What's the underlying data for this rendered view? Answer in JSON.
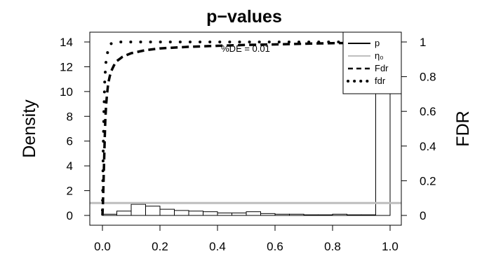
{
  "chart_data": {
    "type": "bar",
    "title": "p−values",
    "annotation": "%DE = 0.01",
    "xlabel": "",
    "ylabel": "Density",
    "y2label": "FDR",
    "xlim": [
      0,
      1
    ],
    "ylim": [
      0,
      14
    ],
    "y2lim": [
      0,
      1
    ],
    "x_ticks": [
      "0.0",
      "0.2",
      "0.4",
      "0.6",
      "0.8",
      "1.0"
    ],
    "y_ticks": [
      "0",
      "2",
      "4",
      "6",
      "8",
      "10",
      "12",
      "14"
    ],
    "y2_ticks": [
      "0",
      "0.2",
      "0.4",
      "0.6",
      "0.8",
      "1"
    ],
    "legend": {
      "position": "top-right",
      "entries": [
        {
          "label": "p",
          "style": "solid",
          "color": "#000000"
        },
        {
          "label": "η₀",
          "style": "solid",
          "color": "#bebebe"
        },
        {
          "label": "Fdr",
          "style": "dashed",
          "color": "#000000"
        },
        {
          "label": "fdr",
          "style": "dotted",
          "color": "#000000"
        }
      ]
    },
    "histogram": {
      "name": "p",
      "breaks": [
        0,
        0.05,
        0.1,
        0.15,
        0.2,
        0.25,
        0.3,
        0.35,
        0.4,
        0.45,
        0.5,
        0.55,
        0.6,
        0.65,
        0.7,
        0.75,
        0.8,
        0.85,
        0.9,
        0.95,
        1.0
      ],
      "density": [
        0.1,
        0.35,
        0.9,
        0.75,
        0.5,
        0.4,
        0.35,
        0.3,
        0.2,
        0.2,
        0.3,
        0.15,
        0.1,
        0.1,
        0.05,
        0.05,
        0.1,
        0.05,
        0.05,
        14.5
      ]
    },
    "eta0": {
      "name": "η₀",
      "density": 1.0
    },
    "series": [
      {
        "name": "Fdr",
        "axis": "FDR",
        "x": [
          0.0,
          0.002,
          0.004,
          0.006,
          0.008,
          0.01,
          0.013,
          0.016,
          0.02,
          0.025,
          0.03,
          0.04,
          0.05,
          0.07,
          0.1,
          0.15,
          0.2,
          0.3,
          0.4,
          0.5,
          0.6,
          0.7,
          0.8,
          0.9,
          1.0
        ],
        "y": [
          0.0,
          0.08,
          0.2,
          0.33,
          0.45,
          0.55,
          0.64,
          0.7,
          0.76,
          0.8,
          0.83,
          0.865,
          0.89,
          0.915,
          0.935,
          0.953,
          0.963,
          0.972,
          0.978,
          0.983,
          0.986,
          0.99,
          0.993,
          0.995,
          0.997
        ]
      },
      {
        "name": "fdr",
        "axis": "FDR",
        "x": [
          0.0,
          0.001,
          0.003,
          0.005,
          0.008,
          0.012,
          0.02,
          0.03,
          0.05,
          0.08,
          0.12,
          0.16,
          0.2,
          0.25,
          0.3,
          0.35,
          0.4,
          0.45,
          0.5,
          0.55,
          0.6,
          0.65,
          0.7,
          0.75,
          0.8,
          0.85,
          0.9,
          0.95,
          1.0
        ],
        "y": [
          0.03,
          0.15,
          0.4,
          0.6,
          0.78,
          0.88,
          0.96,
          0.99,
          1.0,
          1.0,
          1.0,
          1.0,
          1.0,
          1.0,
          1.0,
          1.0,
          1.0,
          1.0,
          1.0,
          1.0,
          1.0,
          1.0,
          1.0,
          1.0,
          1.0,
          1.0,
          1.0,
          1.0,
          1.0
        ]
      }
    ],
    "grid": false
  }
}
